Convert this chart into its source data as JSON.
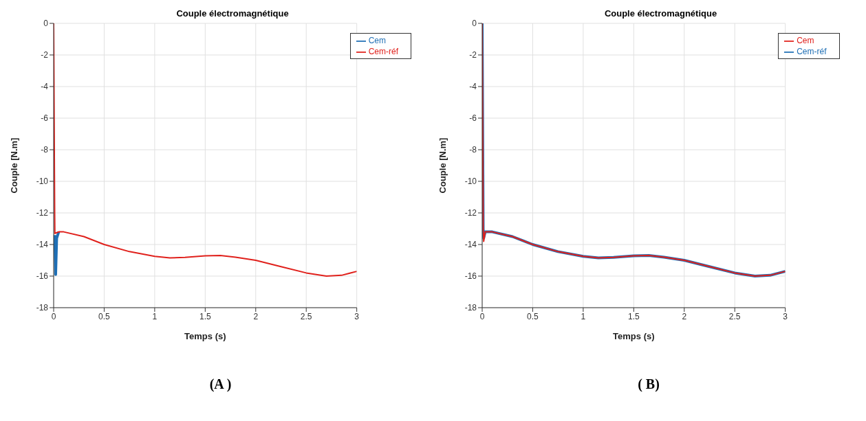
{
  "chart_data": [
    {
      "type": "line",
      "title": "Couple électromagnétique",
      "xlabel": "Temps (s)",
      "ylabel": "Couple [N.m]",
      "xlim": [
        0,
        3
      ],
      "xticks": [
        0,
        0.5,
        1,
        1.5,
        2,
        2.5,
        3
      ],
      "ylim": [
        -18,
        0
      ],
      "yticks": [
        -18,
        -16,
        -14,
        -12,
        -10,
        -8,
        -6,
        -4,
        -2,
        0
      ],
      "grid": true,
      "legend": "top right",
      "line_style": "solid",
      "annotations": [
        "(A )"
      ],
      "series": [
        {
          "name": "Cem",
          "color": "#1f6fb5",
          "x": [
            0.01,
            0.02,
            0.03,
            0.05
          ],
          "values": [
            -13.4,
            -15.9,
            -13.6,
            -13.2
          ]
        },
        {
          "name": "Cem-réf",
          "color": "#e0201b",
          "x": [
            0,
            0.01,
            0.012,
            0.03,
            0.05,
            0.1,
            0.3,
            0.5,
            0.75,
            1,
            1.15,
            1.3,
            1.5,
            1.65,
            1.8,
            2,
            2.25,
            2.5,
            2.7,
            2.85,
            3
          ],
          "values": [
            0,
            -12,
            -13.3,
            -13.25,
            -13.2,
            -13.2,
            -13.5,
            -14,
            -14.45,
            -14.75,
            -14.85,
            -14.82,
            -14.72,
            -14.7,
            -14.8,
            -15,
            -15.4,
            -15.8,
            -16,
            -15.95,
            -15.7
          ]
        }
      ]
    },
    {
      "type": "line",
      "title": "Couple électromagnétique",
      "xlabel": "Temps (s)",
      "ylabel": "Couple [N.m]",
      "xlim": [
        0,
        3
      ],
      "xticks": [
        0,
        0.5,
        1,
        1.5,
        2,
        2.5,
        3
      ],
      "ylim": [
        -18,
        0
      ],
      "yticks": [
        -18,
        -16,
        -14,
        -12,
        -10,
        -8,
        -6,
        -4,
        -2,
        0
      ],
      "grid": true,
      "legend": "top right",
      "line_style": "solid",
      "annotations": [
        "( B)"
      ],
      "series": [
        {
          "name": "Cem-réf",
          "color": "#1f6fb5",
          "x": [
            0,
            0.01,
            0.015,
            0.03,
            0.05,
            0.1,
            0.3,
            0.5,
            0.75,
            1,
            1.15,
            1.3,
            1.5,
            1.65,
            1.8,
            2,
            2.25,
            2.5,
            2.7,
            2.85,
            3
          ],
          "values": [
            0,
            -13,
            -13.6,
            -13.2,
            -13.2,
            -13.2,
            -13.5,
            -14,
            -14.45,
            -14.75,
            -14.85,
            -14.82,
            -14.72,
            -14.7,
            -14.8,
            -15,
            -15.4,
            -15.8,
            -16,
            -15.95,
            -15.7
          ]
        },
        {
          "name": "Cem",
          "color": "#e0201b",
          "x": [
            0,
            0.01,
            0.015,
            0.03,
            0.05,
            0.1,
            0.3,
            0.5,
            0.75,
            1,
            1.15,
            1.3,
            1.5,
            1.65,
            1.8,
            2,
            2.25,
            2.5,
            2.7,
            2.85,
            3
          ],
          "values": [
            0,
            -13,
            -13.8,
            -13.2,
            -13.2,
            -13.2,
            -13.5,
            -14,
            -14.45,
            -14.75,
            -14.85,
            -14.82,
            -14.72,
            -14.7,
            -14.8,
            -15,
            -15.4,
            -15.8,
            -16,
            -15.95,
            -15.7
          ]
        }
      ]
    }
  ]
}
